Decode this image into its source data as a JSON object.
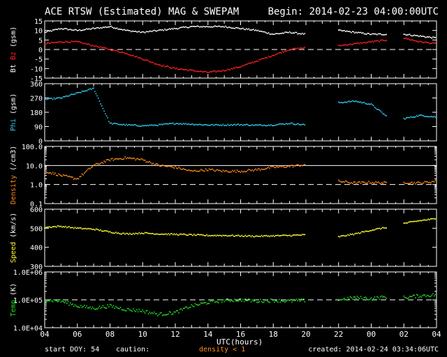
{
  "header": {
    "title": "ACE RTSW (Estimated) MAG & SWEPAM",
    "begin": "Begin: 2014-02-23 04:00:00UTC"
  },
  "footer": {
    "start_doy": "start DOY:  54",
    "caution": "caution:",
    "density_note": "density < 1",
    "created": "created: 2014-02-24 03:34:06UTC"
  },
  "colors": {
    "background": "#000000",
    "axes": "#ffffff",
    "bt": "#ffffff",
    "bz": "#ff2020",
    "phi": "#33ccee",
    "density": "#ff8c1a",
    "speed": "#ffff33",
    "temp": "#22dd22"
  },
  "chart_data": {
    "type": "scatter",
    "x_axis": {
      "label": "UTC(hours)",
      "ticks": [
        "04",
        "06",
        "08",
        "10",
        "12",
        "14",
        "16",
        "18",
        "20",
        "22",
        "00",
        "02",
        "04"
      ],
      "range_hours": [
        0,
        24
      ]
    },
    "panels": [
      {
        "id": "mag",
        "ylabel_parts": [
          "Bt",
          " ",
          "Bz",
          "  (gsm)"
        ],
        "ylim": [
          -15,
          15
        ],
        "yticks": [
          "15",
          "10",
          "5",
          "0",
          "-5",
          "-10",
          "-15"
        ],
        "ytick_values": [
          15,
          10,
          5,
          0,
          -5,
          -10,
          -15
        ],
        "reference_lines": [
          {
            "value": 0,
            "style": "dashed"
          }
        ],
        "series": [
          {
            "name": "Bt",
            "points": [
              [
                0,
                9
              ],
              [
                1,
                11
              ],
              [
                2,
                10
              ],
              [
                3,
                11
              ],
              [
                4,
                12
              ],
              [
                5,
                10
              ],
              [
                6,
                9
              ],
              [
                7,
                10
              ],
              [
                8,
                11
              ],
              [
                9,
                12
              ],
              [
                10,
                12
              ],
              [
                11,
                12
              ],
              [
                12,
                11
              ],
              [
                13,
                10
              ],
              [
                14,
                8
              ],
              [
                15,
                9
              ],
              [
                16,
                8
              ],
              [
                18,
                10
              ],
              [
                19,
                9
              ],
              [
                20,
                8
              ],
              [
                21,
                8
              ],
              [
                22,
                8
              ],
              [
                23,
                7
              ],
              [
                24,
                6
              ]
            ],
            "gap_after": [
              16,
              21
            ],
            "gap_until": [
              18,
              22
            ]
          },
          {
            "name": "Bz",
            "points": [
              [
                0,
                3
              ],
              [
                1,
                4
              ],
              [
                2,
                4
              ],
              [
                3,
                2
              ],
              [
                4,
                0
              ],
              [
                5,
                -2
              ],
              [
                6,
                -5
              ],
              [
                7,
                -8
              ],
              [
                8,
                -10
              ],
              [
                9,
                -11
              ],
              [
                10,
                -12
              ],
              [
                11,
                -11
              ],
              [
                12,
                -9
              ],
              [
                13,
                -6
              ],
              [
                14,
                -3
              ],
              [
                15,
                0
              ],
              [
                16,
                1
              ],
              [
                18,
                2
              ],
              [
                19,
                3
              ],
              [
                20,
                4
              ],
              [
                21,
                5
              ],
              [
                22,
                6
              ],
              [
                23,
                4
              ],
              [
                24,
                3
              ]
            ],
            "gap_after": [
              16,
              21
            ],
            "gap_until": [
              18,
              22
            ]
          }
        ]
      },
      {
        "id": "phi",
        "ylabel_parts": [
          "Phi",
          " (gsm)"
        ],
        "ylim": [
          0,
          360
        ],
        "yticks": [
          "360",
          "270",
          "180",
          "90",
          "0"
        ],
        "ytick_values": [
          360,
          270,
          180,
          90,
          0
        ],
        "reference_lines": [],
        "series": [
          {
            "name": "Phi",
            "points": [
              [
                0,
                260
              ],
              [
                1,
                270
              ],
              [
                2,
                300
              ],
              [
                3,
                330
              ],
              [
                4,
                110
              ],
              [
                5,
                100
              ],
              [
                6,
                95
              ],
              [
                7,
                100
              ],
              [
                8,
                110
              ],
              [
                9,
                105
              ],
              [
                10,
                100
              ],
              [
                11,
                100
              ],
              [
                12,
                102
              ],
              [
                13,
                98
              ],
              [
                14,
                100
              ],
              [
                15,
                110
              ],
              [
                16,
                100
              ],
              [
                18,
                240
              ],
              [
                19,
                250
              ],
              [
                20,
                230
              ],
              [
                21,
                150
              ],
              [
                22,
                140
              ],
              [
                23,
                160
              ],
              [
                24,
                150
              ]
            ],
            "gap_after": [
              16,
              21
            ],
            "gap_until": [
              18,
              22
            ]
          }
        ]
      },
      {
        "id": "density",
        "ylabel_parts": [
          "Density",
          " (/cm3)"
        ],
        "log_scale": true,
        "ylim": [
          0.1,
          100
        ],
        "yticks": [
          "100.0",
          "10.0",
          "1.0",
          "0.1"
        ],
        "ytick_values": [
          100,
          10,
          1,
          0.1
        ],
        "reference_lines": [
          {
            "value": 10,
            "style": "solid"
          },
          {
            "value": 1,
            "style": "dashed"
          }
        ],
        "series": [
          {
            "name": "Density",
            "points": [
              [
                0,
                5
              ],
              [
                1,
                3
              ],
              [
                2,
                2
              ],
              [
                3,
                10
              ],
              [
                4,
                20
              ],
              [
                5,
                25
              ],
              [
                6,
                20
              ],
              [
                7,
                10
              ],
              [
                8,
                8
              ],
              [
                9,
                5
              ],
              [
                10,
                6
              ],
              [
                11,
                5
              ],
              [
                12,
                5
              ],
              [
                13,
                6
              ],
              [
                14,
                8
              ],
              [
                15,
                9
              ],
              [
                16,
                11
              ],
              [
                18,
                1.5
              ],
              [
                19,
                1.2
              ],
              [
                20,
                1.3
              ],
              [
                21,
                1.2
              ],
              [
                22,
                1.3
              ],
              [
                23,
                1.2
              ],
              [
                24,
                1.5
              ]
            ],
            "gap_after": [
              16,
              21
            ],
            "gap_until": [
              18,
              22
            ]
          }
        ]
      },
      {
        "id": "speed",
        "ylabel_parts": [
          "Speed",
          " (km/s)"
        ],
        "ylim": [
          300,
          600
        ],
        "yticks": [
          "600",
          "500",
          "400",
          "300"
        ],
        "ytick_values": [
          600,
          500,
          400,
          300
        ],
        "reference_lines": [],
        "series": [
          {
            "name": "Speed",
            "points": [
              [
                0,
                505
              ],
              [
                1,
                510
              ],
              [
                2,
                500
              ],
              [
                3,
                495
              ],
              [
                4,
                480
              ],
              [
                5,
                470
              ],
              [
                6,
                475
              ],
              [
                7,
                470
              ],
              [
                8,
                468
              ],
              [
                9,
                465
              ],
              [
                10,
                462
              ],
              [
                11,
                462
              ],
              [
                12,
                460
              ],
              [
                13,
                458
              ],
              [
                14,
                460
              ],
              [
                15,
                462
              ],
              [
                16,
                465
              ],
              [
                18,
                455
              ],
              [
                19,
                470
              ],
              [
                20,
                490
              ],
              [
                21,
                505
              ],
              [
                22,
                525
              ],
              [
                23,
                540
              ],
              [
                24,
                550
              ]
            ],
            "gap_after": [
              16,
              21
            ],
            "gap_until": [
              18,
              22
            ]
          }
        ]
      },
      {
        "id": "temp",
        "ylabel_parts": [
          "Temp",
          " (K)"
        ],
        "log_scale": true,
        "ylim": [
          10000,
          1000000
        ],
        "yticks": [
          "1.0E+06",
          "1.0E+05",
          "1.0E+04"
        ],
        "ytick_values": [
          1000000,
          100000,
          10000
        ],
        "reference_lines": [
          {
            "value": 100000,
            "style": "dashed"
          }
        ],
        "series": [
          {
            "name": "Temp",
            "points": [
              [
                0,
                100000
              ],
              [
                1,
                90000
              ],
              [
                2,
                60000
              ],
              [
                3,
                50000
              ],
              [
                4,
                60000
              ],
              [
                5,
                45000
              ],
              [
                6,
                40000
              ],
              [
                7,
                30000
              ],
              [
                8,
                35000
              ],
              [
                9,
                60000
              ],
              [
                10,
                80000
              ],
              [
                11,
                95000
              ],
              [
                12,
                100000
              ],
              [
                13,
                90000
              ],
              [
                14,
                95000
              ],
              [
                15,
                90000
              ],
              [
                16,
                95000
              ],
              [
                18,
                100000
              ],
              [
                19,
                120000
              ],
              [
                20,
                110000
              ],
              [
                21,
                130000
              ],
              [
                22,
                120000
              ],
              [
                23,
                140000
              ],
              [
                24,
                150000
              ]
            ],
            "gap_after": [
              16,
              21
            ],
            "gap_until": [
              18,
              22
            ]
          }
        ]
      }
    ]
  }
}
